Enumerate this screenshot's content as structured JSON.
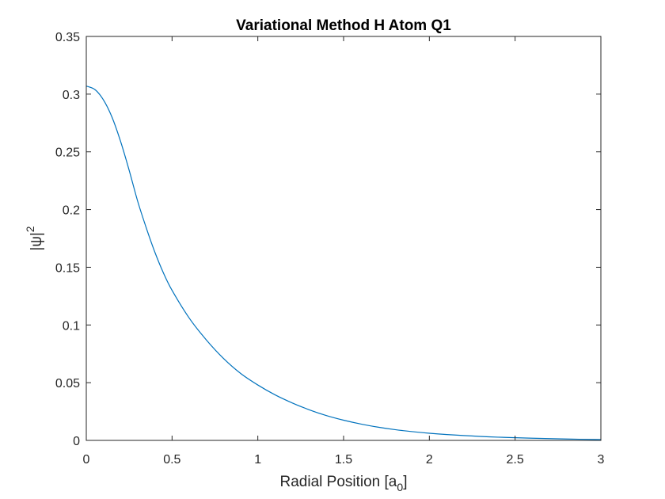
{
  "chart_data": {
    "type": "line",
    "title": "Variational Method H Atom Q1",
    "xlabel": "Radial Position [a",
    "xlabel_subscript": "0",
    "xlabel_suffix": "]",
    "ylabel": "|ψ|",
    "ylabel_superscript": "2",
    "xlim": [
      0,
      3
    ],
    "ylim": [
      0,
      0.35
    ],
    "xticks": [
      0,
      0.5,
      1,
      1.5,
      2,
      2.5,
      3
    ],
    "xtick_labels": [
      "0",
      "0.5",
      "1",
      "1.5",
      "2",
      "2.5",
      "3"
    ],
    "yticks": [
      0,
      0.05,
      0.1,
      0.15,
      0.2,
      0.25,
      0.3,
      0.35
    ],
    "ytick_labels": [
      "0",
      "0.05",
      "0.1",
      "0.15",
      "0.2",
      "0.25",
      "0.3",
      "0.35"
    ],
    "grid": false,
    "series": [
      {
        "color": "#0072bd",
        "x": [
          0,
          0.05,
          0.1,
          0.15,
          0.2,
          0.25,
          0.3,
          0.35,
          0.4,
          0.45,
          0.5,
          0.6,
          0.7,
          0.8,
          0.9,
          1.0,
          1.1,
          1.2,
          1.3,
          1.4,
          1.5,
          1.6,
          1.7,
          1.8,
          1.9,
          2.0,
          2.2,
          2.4,
          2.6,
          2.8,
          3.0
        ],
        "y": [
          0.307,
          0.304,
          0.295,
          0.28,
          0.259,
          0.234,
          0.207,
          0.184,
          0.163,
          0.145,
          0.13,
          0.106,
          0.087,
          0.071,
          0.058,
          0.048,
          0.0395,
          0.0325,
          0.0265,
          0.0215,
          0.0175,
          0.0142,
          0.0115,
          0.0093,
          0.0076,
          0.0062,
          0.0042,
          0.0028,
          0.0019,
          0.0012,
          0.0007
        ]
      }
    ]
  }
}
